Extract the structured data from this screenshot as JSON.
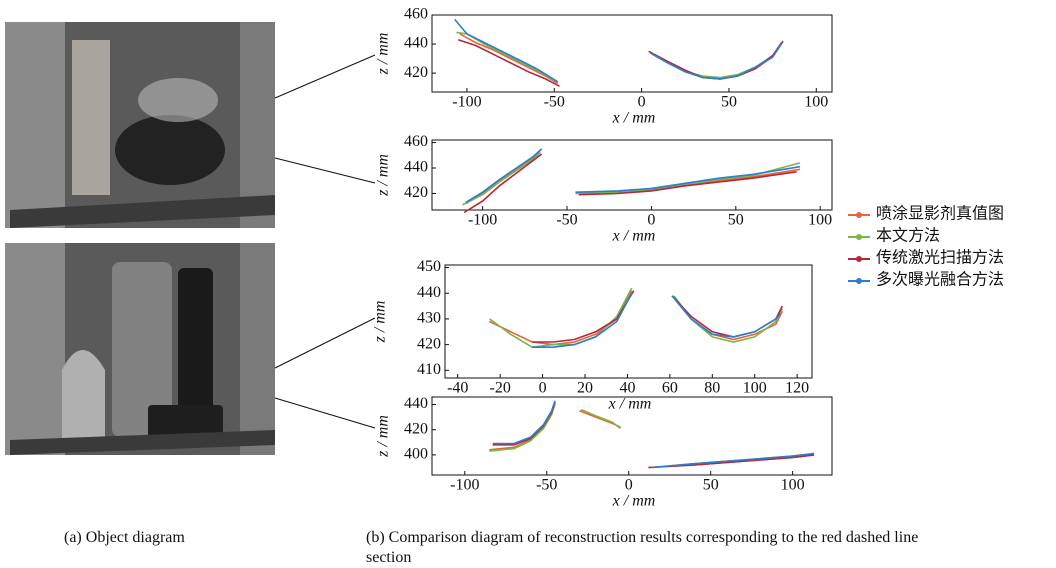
{
  "captions": {
    "a": "(a) Object diagram",
    "b": "(b) Comparison diagram of reconstruction results corresponding to the red dashed line section"
  },
  "chart_data": [
    {
      "type": "line",
      "xlabel": "x / mm",
      "ylabel": "z / mm",
      "xlim": [
        -120,
        109
      ],
      "ylim": [
        407,
        460
      ],
      "xticks": [
        -100,
        -50,
        0,
        50,
        100
      ],
      "yticks": [
        420,
        440,
        460
      ],
      "series": [
        {
          "name": "喷涂显影剂真值图",
          "color": "#e8643a",
          "x": [
            -104,
            -95,
            -85,
            -75,
            -65,
            -55,
            -48,
            null,
            5,
            15,
            25,
            35,
            45,
            55,
            65,
            75,
            80
          ],
          "values": [
            447,
            441,
            436,
            430,
            424,
            418,
            413,
            null,
            434,
            427,
            421,
            417,
            416,
            418,
            423,
            431,
            440
          ]
        },
        {
          "name": "本文方法",
          "color": "#7ab648",
          "x": [
            -106,
            -100,
            -90,
            -80,
            -70,
            -60,
            -50,
            null,
            6,
            15,
            25,
            35,
            45,
            55,
            65,
            75,
            80
          ],
          "values": [
            448,
            447,
            440,
            434,
            428,
            422,
            415,
            null,
            433,
            427,
            421,
            418,
            417,
            419,
            424,
            432,
            441
          ]
        },
        {
          "name": "传统激光扫描方法",
          "color": "#b8263a",
          "x": [
            -105,
            -95,
            -85,
            -75,
            -65,
            -55,
            -47,
            null,
            4,
            15,
            25,
            35,
            45,
            55,
            65,
            75,
            81
          ],
          "values": [
            443,
            439,
            433,
            427,
            421,
            416,
            411,
            null,
            435,
            428,
            422,
            417,
            416,
            418,
            423,
            432,
            442
          ]
        },
        {
          "name": "多次曝光融合方法",
          "color": "#2a7fd0",
          "x": [
            -107,
            -100,
            -90,
            -80,
            -70,
            -60,
            -48,
            null,
            5,
            15,
            25,
            35,
            45,
            55,
            65,
            75,
            80
          ],
          "values": [
            457,
            447,
            441,
            435,
            429,
            423,
            414,
            null,
            434,
            427,
            421,
            417,
            416,
            418,
            424,
            431,
            440
          ]
        }
      ]
    },
    {
      "type": "line",
      "xlabel": "x / mm",
      "ylabel": "z / mm",
      "xlim": [
        -130,
        107
      ],
      "ylim": [
        407,
        462
      ],
      "xticks": [
        -100,
        -50,
        0,
        50,
        100
      ],
      "yticks": [
        420,
        440,
        460
      ],
      "series": [
        {
          "color": "#e8643a",
          "x": [
            -110,
            -100,
            -90,
            -80,
            -70,
            -66,
            null,
            -45,
            -20,
            0,
            20,
            40,
            60,
            88
          ],
          "values": [
            412,
            420,
            430,
            439,
            448,
            453,
            null,
            420,
            421,
            423,
            426,
            430,
            433,
            439
          ]
        },
        {
          "color": "#7ab648",
          "x": [
            -112,
            -100,
            -90,
            -80,
            -70,
            -66,
            null,
            -44,
            -20,
            0,
            20,
            40,
            60,
            88
          ],
          "values": [
            411,
            419,
            429,
            438,
            447,
            452,
            null,
            420,
            421,
            423,
            427,
            431,
            434,
            444
          ]
        },
        {
          "color": "#b8263a",
          "x": [
            -111,
            -100,
            -90,
            -80,
            -70,
            -65,
            null,
            -43,
            -20,
            0,
            20,
            40,
            60,
            86
          ],
          "values": [
            405,
            414,
            426,
            436,
            446,
            451,
            null,
            419,
            420,
            422,
            426,
            429,
            432,
            437
          ]
        },
        {
          "color": "#2a7fd0",
          "x": [
            -110,
            -100,
            -90,
            -80,
            -70,
            -65,
            null,
            -45,
            -20,
            0,
            20,
            40,
            60,
            88
          ],
          "values": [
            413,
            421,
            431,
            440,
            449,
            455,
            null,
            421,
            422,
            424,
            428,
            432,
            435,
            441
          ]
        }
      ]
    },
    {
      "type": "line",
      "xlabel": "x / mm",
      "ylabel": "z / mm",
      "xlim": [
        -46,
        127
      ],
      "ylim": [
        407,
        451
      ],
      "xticks": [
        -40,
        -20,
        0,
        20,
        40,
        60,
        80,
        100,
        120
      ],
      "yticks": [
        410,
        420,
        430,
        440,
        450
      ],
      "series": [
        {
          "color": "#e8643a",
          "x": [
            -25,
            -15,
            -5,
            5,
            15,
            25,
            35,
            42,
            null,
            62,
            70,
            80,
            90,
            100,
            110,
            113
          ],
          "values": [
            429,
            425,
            421,
            420,
            421,
            424,
            430,
            441,
            null,
            438,
            430,
            424,
            422,
            424,
            428,
            433
          ]
        },
        {
          "color": "#7ab648",
          "x": [
            -25,
            -15,
            -5,
            5,
            15,
            25,
            35,
            42,
            null,
            62,
            70,
            80,
            90,
            100,
            110,
            113
          ],
          "values": [
            430,
            424,
            419,
            420,
            420,
            423,
            431,
            442,
            null,
            439,
            430,
            423,
            421,
            423,
            429,
            434
          ]
        },
        {
          "color": "#b8263a",
          "x": [
            -5,
            5,
            15,
            25,
            35,
            43,
            null,
            61,
            70,
            80,
            90,
            100,
            110,
            113
          ],
          "values": [
            421,
            421,
            422,
            425,
            430,
            441,
            null,
            439,
            431,
            425,
            423,
            425,
            430,
            435
          ]
        },
        {
          "color": "#2a7fd0",
          "x": [
            -5,
            5,
            15,
            25,
            35,
            42,
            null,
            61,
            70,
            80,
            90,
            100,
            110,
            112
          ],
          "values": [
            419,
            419,
            420,
            423,
            429,
            440,
            null,
            439,
            430,
            424,
            423,
            425,
            430,
            432
          ]
        }
      ]
    },
    {
      "type": "line",
      "xlabel": "x / mm",
      "ylabel": "z / mm",
      "xlim": [
        -120,
        124
      ],
      "ylim": [
        384,
        446
      ],
      "xticks": [
        -100,
        -50,
        0,
        50,
        100
      ],
      "yticks": [
        400,
        420,
        440
      ],
      "series": [
        {
          "color": "#e8643a",
          "x": [
            -85,
            -70,
            -60,
            -52,
            -47,
            -45,
            null,
            -30,
            -20,
            -10,
            -5,
            null,
            12,
            40,
            70,
            100,
            113
          ],
          "values": [
            404,
            406,
            412,
            422,
            433,
            440,
            null,
            435,
            430,
            425,
            422,
            null,
            390,
            392,
            395,
            398,
            400
          ]
        },
        {
          "color": "#7ab648",
          "x": [
            -85,
            -70,
            -60,
            -52,
            -47,
            -45,
            null,
            -29,
            -20,
            -10,
            -5,
            null,
            14,
            40,
            70,
            100,
            113
          ],
          "values": [
            403,
            405,
            411,
            421,
            432,
            441,
            null,
            436,
            431,
            426,
            421,
            null,
            390,
            393,
            396,
            399,
            401
          ]
        },
        {
          "color": "#b8263a",
          "x": [
            -83,
            -70,
            -60,
            -52,
            -47,
            -45,
            null,
            12,
            40,
            70,
            100,
            113
          ],
          "values": [
            408,
            408,
            413,
            423,
            434,
            442,
            null,
            390,
            392,
            395,
            398,
            400
          ]
        },
        {
          "color": "#2a7fd0",
          "x": [
            -83,
            -70,
            -60,
            -52,
            -47,
            -45,
            null,
            14,
            40,
            70,
            100,
            113
          ],
          "values": [
            409,
            409,
            414,
            424,
            435,
            443,
            null,
            390,
            393,
            396,
            399,
            401
          ]
        }
      ]
    }
  ]
}
